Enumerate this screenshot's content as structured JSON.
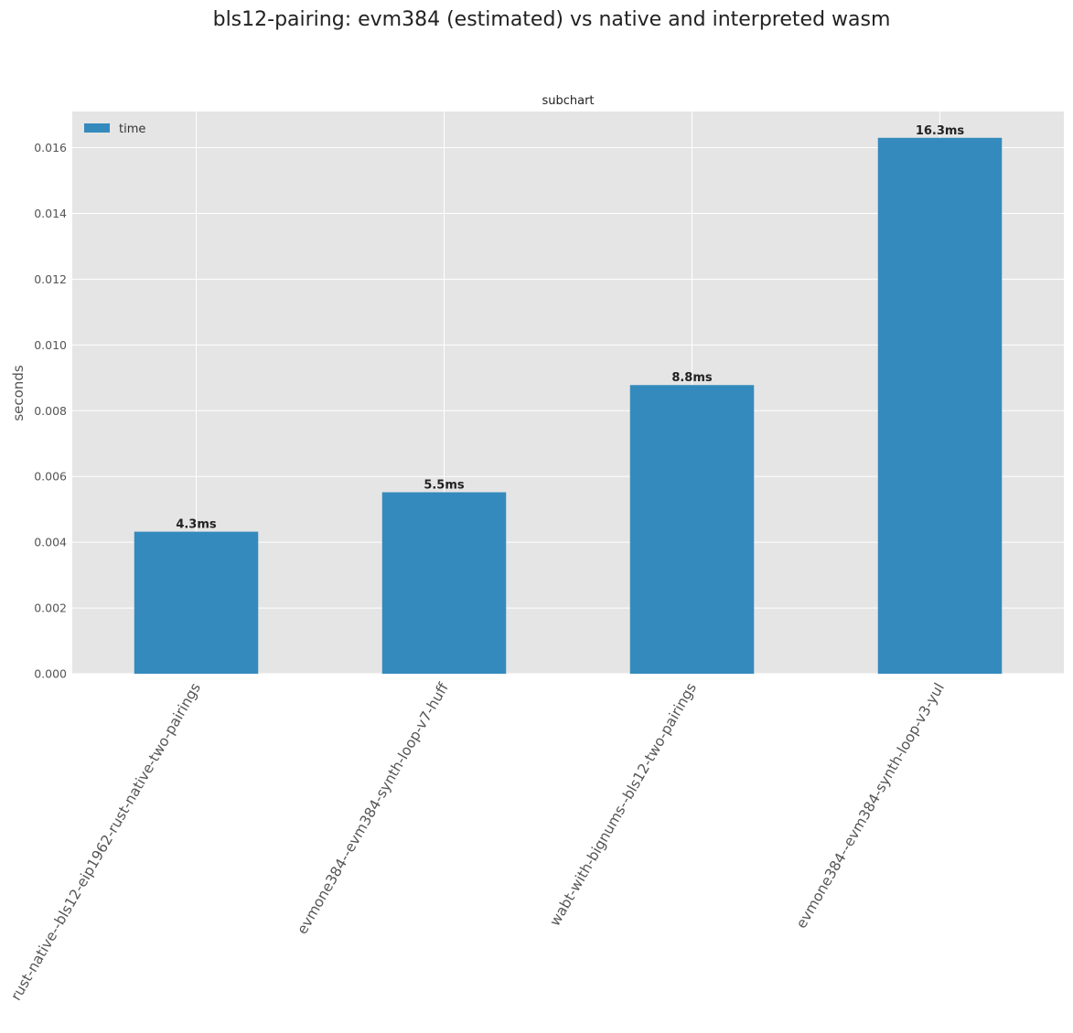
{
  "chart_data": {
    "type": "bar",
    "suptitle": "bls12-pairing: evm384 (estimated) vs native and interpreted wasm",
    "title": "subchart",
    "xlabel": "",
    "ylabel": "seconds",
    "categories": [
      "rust-native--bls12-eip1962-rust-native-two-pairings",
      "evmone384--evm384-synth-loop-v7-huff",
      "wabt-with-bignums--bls12-two-pairings",
      "evmone384--evm384-synth-loop-v3-yul"
    ],
    "series": [
      {
        "name": "time",
        "values": [
          0.00432,
          0.00552,
          0.00878,
          0.0163
        ],
        "labels": [
          "4.3ms",
          "5.5ms",
          "8.8ms",
          "16.3ms"
        ],
        "color": "#348abd"
      }
    ],
    "ylim": [
      0,
      0.0171
    ],
    "yticks": [
      "0.000",
      "0.002",
      "0.004",
      "0.006",
      "0.008",
      "0.010",
      "0.012",
      "0.014",
      "0.016"
    ],
    "grid": true,
    "legend_position": "top-left",
    "background_color": "#e5e5e5"
  }
}
